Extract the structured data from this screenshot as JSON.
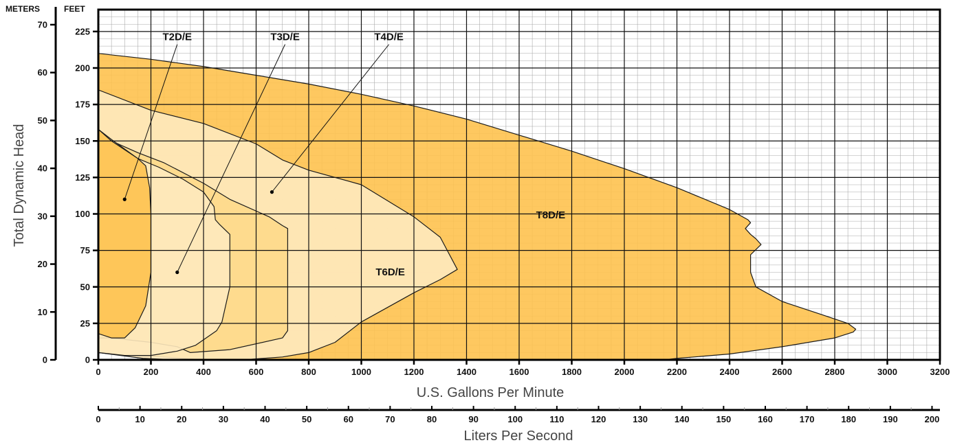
{
  "chart_data": {
    "type": "area",
    "units": {
      "left": "METERS",
      "right": "FEET"
    },
    "xlabel": "U.S. Gallons Per Minute",
    "ylabel": "Total Dynamic Head",
    "x2label": "Liters Per Second",
    "xlim": [
      0,
      3200
    ],
    "ylim_feet": [
      0,
      240
    ],
    "ylim_meters": [
      0,
      73.15
    ],
    "x2lim": [
      0,
      201.9
    ],
    "x_ticks": [
      0,
      200,
      400,
      600,
      800,
      1000,
      1200,
      1400,
      1600,
      1800,
      2000,
      2200,
      2400,
      2600,
      2800,
      3000,
      3200
    ],
    "y_ticks_feet": [
      0,
      25,
      50,
      75,
      100,
      125,
      150,
      175,
      200,
      225
    ],
    "y_ticks_meters": [
      0,
      10,
      20,
      30,
      40,
      50,
      60,
      70
    ],
    "x2_ticks": [
      0,
      10,
      20,
      30,
      40,
      50,
      60,
      70,
      80,
      90,
      100,
      110,
      120,
      130,
      140,
      150,
      160,
      170,
      180,
      190,
      200
    ],
    "grid": true,
    "colors": {
      "T8D/E": "#fec24f",
      "T6D/E": "#fee9be",
      "T4D/E": "#fed98a",
      "T3D/E": "#fee9be",
      "T2D/E": "#fec24f",
      "outline": "#1a1a1a",
      "grid_major": "#111111",
      "grid_minor": "#aaaaaa"
    },
    "series": [
      {
        "name": "T8D/E",
        "points": [
          [
            0,
            210
          ],
          [
            200,
            206
          ],
          [
            400,
            201
          ],
          [
            600,
            195
          ],
          [
            800,
            189
          ],
          [
            1000,
            182
          ],
          [
            1200,
            174
          ],
          [
            1400,
            165
          ],
          [
            1600,
            154
          ],
          [
            1800,
            143
          ],
          [
            2000,
            131
          ],
          [
            2200,
            118
          ],
          [
            2400,
            103
          ],
          [
            2470,
            96
          ],
          [
            2480,
            94
          ],
          [
            2460,
            90
          ],
          [
            2480,
            86
          ],
          [
            2500,
            83
          ],
          [
            2520,
            79
          ],
          [
            2480,
            72
          ],
          [
            2480,
            60
          ],
          [
            2500,
            50
          ],
          [
            2600,
            40
          ],
          [
            2750,
            31
          ],
          [
            2850,
            25
          ],
          [
            2880,
            21
          ],
          [
            2870,
            19
          ],
          [
            2800,
            15
          ],
          [
            2600,
            9
          ],
          [
            2400,
            4
          ],
          [
            2200,
            1
          ],
          [
            2000,
            -3
          ],
          [
            1800,
            -5
          ],
          [
            1600,
            -8
          ],
          [
            1375,
            -7
          ],
          [
            1200,
            -7
          ],
          [
            1000,
            -3
          ],
          [
            800,
            -3
          ],
          [
            600,
            -2
          ],
          [
            400,
            0
          ],
          [
            250,
            2
          ],
          [
            100,
            3
          ],
          [
            0,
            5
          ]
        ]
      },
      {
        "name": "T6D/E",
        "points": [
          [
            0,
            185
          ],
          [
            200,
            171
          ],
          [
            400,
            162
          ],
          [
            600,
            148
          ],
          [
            700,
            137
          ],
          [
            800,
            130
          ],
          [
            1000,
            120
          ],
          [
            1200,
            98
          ],
          [
            1300,
            84
          ],
          [
            1365,
            62
          ],
          [
            1300,
            55
          ],
          [
            1200,
            46
          ],
          [
            1000,
            26
          ],
          [
            900,
            12
          ],
          [
            800,
            5
          ],
          [
            700,
            2
          ],
          [
            550,
            0
          ],
          [
            400,
            -2
          ],
          [
            300,
            0
          ],
          [
            170,
            1
          ],
          [
            0,
            5
          ]
        ]
      },
      {
        "name": "T4D/E",
        "points": [
          [
            0,
            158
          ],
          [
            50,
            150
          ],
          [
            150,
            142
          ],
          [
            250,
            135
          ],
          [
            400,
            121
          ],
          [
            500,
            110
          ],
          [
            650,
            98
          ],
          [
            700,
            92
          ],
          [
            720,
            90
          ],
          [
            720,
            20
          ],
          [
            700,
            15
          ],
          [
            500,
            7
          ],
          [
            350,
            5
          ],
          [
            300,
            9
          ],
          [
            200,
            12
          ],
          [
            100,
            14
          ],
          [
            50,
            15
          ],
          [
            0,
            15
          ]
        ]
      },
      {
        "name": "T3D/E",
        "points": [
          [
            0,
            158
          ],
          [
            50,
            151
          ],
          [
            150,
            138
          ],
          [
            230,
            132
          ],
          [
            320,
            124
          ],
          [
            400,
            115
          ],
          [
            440,
            105
          ],
          [
            445,
            96
          ],
          [
            460,
            93
          ],
          [
            500,
            86
          ],
          [
            500,
            50
          ],
          [
            470,
            26
          ],
          [
            450,
            20
          ],
          [
            370,
            10
          ],
          [
            300,
            6
          ],
          [
            200,
            3
          ],
          [
            100,
            3
          ],
          [
            0,
            5
          ]
        ]
      },
      {
        "name": "T2D/E",
        "points": [
          [
            0,
            158
          ],
          [
            50,
            150
          ],
          [
            150,
            138
          ],
          [
            180,
            133
          ],
          [
            195,
            118
          ],
          [
            200,
            100
          ],
          [
            200,
            60
          ],
          [
            180,
            37
          ],
          [
            140,
            22
          ],
          [
            100,
            15
          ],
          [
            50,
            15
          ],
          [
            0,
            18
          ]
        ]
      }
    ],
    "zone_labels": [
      {
        "text": "T8D/E",
        "x": 1720,
        "y": 97
      },
      {
        "text": "T6D/E",
        "x": 1110,
        "y": 58
      }
    ],
    "callouts": [
      {
        "text": "T2D/E",
        "label_x": 300,
        "label_y": 219,
        "point_x": 100,
        "point_y": 110
      },
      {
        "text": "T3D/E",
        "label_x": 710,
        "label_y": 219,
        "point_x": 300,
        "point_y": 60
      },
      {
        "text": "T4D/E",
        "label_x": 1105,
        "label_y": 219,
        "point_x": 660,
        "point_y": 115
      }
    ]
  }
}
